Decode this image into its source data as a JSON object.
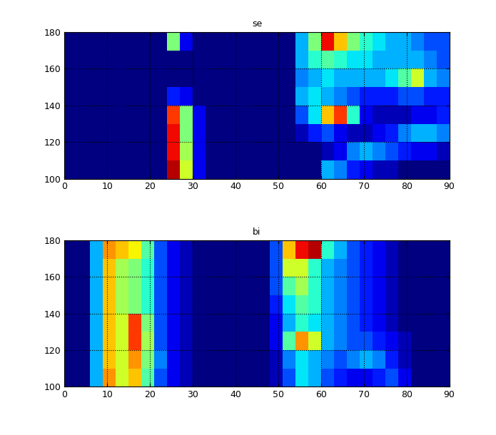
{
  "chart_data": [
    {
      "type": "heatmap",
      "title": "se",
      "xlim": [
        0,
        90
      ],
      "ylim": [
        100,
        180
      ],
      "xticks": [
        0,
        10,
        20,
        30,
        40,
        50,
        60,
        70,
        80,
        90
      ],
      "yticks": [
        100,
        120,
        140,
        160,
        180
      ],
      "grid": true,
      "x_edges": [
        0,
        3,
        6,
        9,
        12,
        15,
        18,
        21,
        24,
        27,
        30,
        33,
        36,
        39,
        42,
        45,
        48,
        51,
        54,
        57,
        60,
        63,
        66,
        69,
        72,
        75,
        78,
        81,
        84,
        87,
        90
      ],
      "y_edges": [
        100,
        110,
        120,
        130,
        140,
        150,
        160,
        170,
        180
      ],
      "zlim": [
        0,
        1
      ],
      "cells": [
        [
          0,
          0,
          0,
          0,
          0,
          0,
          0,
          0,
          0.95,
          0.6,
          0.1,
          0,
          0,
          0,
          0,
          0,
          0,
          0,
          0,
          0,
          0.3,
          0.25,
          0.15,
          0.1,
          0.05,
          0.05,
          0,
          0,
          0,
          0
        ],
        [
          0,
          0,
          0,
          0,
          0,
          0,
          0,
          0,
          0.9,
          0.55,
          0.1,
          0,
          0,
          0,
          0,
          0,
          0,
          0,
          0,
          0,
          0.05,
          0.1,
          0.25,
          0.3,
          0.25,
          0.2,
          0.15,
          0.1,
          0.1,
          0.05
        ],
        [
          0,
          0,
          0,
          0,
          0,
          0,
          0,
          0,
          0.9,
          0.5,
          0.1,
          0,
          0,
          0,
          0,
          0,
          0,
          0,
          0.05,
          0.15,
          0.2,
          0.1,
          0.05,
          0.05,
          0.1,
          0.15,
          0.25,
          0.3,
          0.3,
          0.25
        ],
        [
          0,
          0,
          0,
          0,
          0,
          0,
          0,
          0,
          0.85,
          0.5,
          0.1,
          0,
          0,
          0,
          0,
          0,
          0,
          0,
          0.2,
          0.35,
          0.7,
          0.85,
          0.4,
          0.1,
          0.05,
          0.05,
          0.05,
          0.1,
          0.1,
          0.15
        ],
        [
          0,
          0,
          0,
          0,
          0,
          0,
          0,
          0,
          0.15,
          0.1,
          0,
          0,
          0,
          0,
          0,
          0,
          0,
          0,
          0.3,
          0.35,
          0.3,
          0.25,
          0.2,
          0.15,
          0.15,
          0.15,
          0.2,
          0.2,
          0.15,
          0.15
        ],
        [
          0,
          0,
          0,
          0,
          0,
          0,
          0,
          0,
          0,
          0,
          0,
          0,
          0,
          0,
          0,
          0,
          0,
          0,
          0.25,
          0.3,
          0.35,
          0.3,
          0.3,
          0.3,
          0.3,
          0.35,
          0.45,
          0.6,
          0.3,
          0.25
        ],
        [
          0,
          0,
          0,
          0,
          0,
          0,
          0,
          0,
          0,
          0,
          0,
          0,
          0,
          0,
          0,
          0,
          0,
          0,
          0.3,
          0.4,
          0.45,
          0.4,
          0.35,
          0.35,
          0.3,
          0.3,
          0.3,
          0.3,
          0.25,
          0.2
        ],
        [
          0,
          0,
          0,
          0,
          0,
          0,
          0,
          0,
          0.5,
          0.1,
          0,
          0,
          0,
          0,
          0,
          0,
          0,
          0,
          0.3,
          0.5,
          0.9,
          0.7,
          0.5,
          0.4,
          0.35,
          0.3,
          0.3,
          0.25,
          0.2,
          0.2
        ]
      ]
    },
    {
      "type": "heatmap",
      "title": "bi",
      "xlim": [
        0,
        90
      ],
      "ylim": [
        100,
        180
      ],
      "xticks": [
        0,
        10,
        20,
        30,
        40,
        50,
        60,
        70,
        80,
        90
      ],
      "yticks": [
        100,
        120,
        140,
        160,
        180
      ],
      "grid": true,
      "x_edges": [
        0,
        3,
        6,
        9,
        12,
        15,
        18,
        21,
        24,
        27,
        30,
        33,
        36,
        39,
        42,
        45,
        48,
        51,
        54,
        57,
        60,
        63,
        66,
        69,
        72,
        75,
        78,
        81,
        84,
        87,
        90
      ],
      "y_edges": [
        100,
        110,
        120,
        130,
        140,
        150,
        160,
        170,
        180
      ],
      "zlim": [
        0,
        1
      ],
      "cells": [
        [
          0,
          0,
          0.3,
          0.75,
          0.6,
          0.7,
          0.45,
          0.2,
          0.1,
          0.05,
          0,
          0,
          0,
          0,
          0,
          0,
          0.05,
          0.2,
          0.35,
          0.3,
          0.2,
          0.15,
          0.1,
          0.1,
          0.15,
          0.2,
          0.1,
          0,
          0,
          0
        ],
        [
          0,
          0,
          0.3,
          0.7,
          0.6,
          0.75,
          0.5,
          0.25,
          0.1,
          0.05,
          0,
          0,
          0,
          0,
          0,
          0,
          0.05,
          0.25,
          0.35,
          0.3,
          0.25,
          0.2,
          0.25,
          0.3,
          0.25,
          0.15,
          0.05,
          0,
          0,
          0
        ],
        [
          0,
          0,
          0.3,
          0.7,
          0.6,
          0.85,
          0.55,
          0.2,
          0.1,
          0.05,
          0,
          0,
          0,
          0,
          0,
          0,
          0.1,
          0.45,
          0.75,
          0.6,
          0.3,
          0.25,
          0.2,
          0.2,
          0.15,
          0.1,
          0.05,
          0,
          0,
          0
        ],
        [
          0,
          0,
          0.3,
          0.7,
          0.6,
          0.85,
          0.5,
          0.2,
          0.1,
          0.05,
          0,
          0,
          0,
          0,
          0,
          0,
          0.1,
          0.3,
          0.4,
          0.35,
          0.3,
          0.25,
          0.2,
          0.15,
          0.1,
          0.05,
          0,
          0,
          0,
          0
        ],
        [
          0,
          0,
          0.3,
          0.7,
          0.55,
          0.5,
          0.4,
          0.2,
          0.1,
          0.05,
          0,
          0,
          0,
          0,
          0,
          0,
          0.15,
          0.35,
          0.45,
          0.4,
          0.3,
          0.25,
          0.2,
          0.15,
          0.1,
          0.05,
          0,
          0,
          0,
          0
        ],
        [
          0,
          0,
          0.3,
          0.7,
          0.55,
          0.5,
          0.4,
          0.2,
          0.1,
          0.05,
          0,
          0,
          0,
          0,
          0,
          0,
          0.2,
          0.45,
          0.55,
          0.4,
          0.3,
          0.25,
          0.2,
          0.15,
          0.1,
          0.05,
          0,
          0,
          0,
          0
        ],
        [
          0,
          0,
          0.3,
          0.7,
          0.55,
          0.5,
          0.4,
          0.2,
          0.1,
          0.05,
          0,
          0,
          0,
          0,
          0,
          0,
          0.2,
          0.6,
          0.6,
          0.4,
          0.3,
          0.25,
          0.2,
          0.15,
          0.1,
          0.05,
          0,
          0,
          0,
          0
        ],
        [
          0,
          0,
          0.3,
          0.75,
          0.7,
          0.65,
          0.45,
          0.2,
          0.1,
          0.05,
          0,
          0,
          0,
          0,
          0,
          0,
          0.2,
          0.7,
          0.9,
          0.95,
          0.4,
          0.3,
          0.2,
          0.15,
          0.1,
          0.05,
          0,
          0,
          0,
          0
        ]
      ]
    }
  ]
}
